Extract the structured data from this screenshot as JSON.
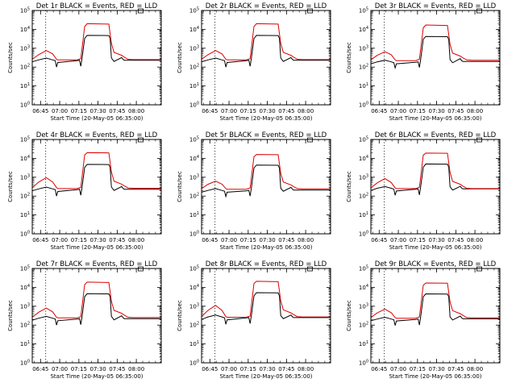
{
  "chart_data": {
    "type": "line",
    "layout": "3x3 grid of panels",
    "y_scale": "log",
    "ylim": [
      1,
      100000
    ],
    "y_ticks": [
      {
        "value": 1,
        "exp": "0"
      },
      {
        "value": 10,
        "exp": "1"
      },
      {
        "value": 100,
        "exp": "2"
      },
      {
        "value": 1000,
        "exp": "3"
      },
      {
        "value": 10000,
        "exp": "4"
      },
      {
        "value": 100000,
        "exp": "5"
      }
    ],
    "x_ticks": [
      "06:45",
      "07:00",
      "07:15",
      "07:30",
      "07:45",
      "08:00"
    ],
    "x_tick_minutes": [
      6.5,
      21.5,
      36.5,
      51.5,
      66.5,
      81.5
    ],
    "xlim_minutes": [
      0,
      101
    ],
    "vlines_minutes": [
      10.5,
      101.5
    ],
    "legend_box": "small box at top edge near 08:00",
    "colors": {
      "events": "#000000",
      "lld": "#dd0000"
    },
    "panels": [
      {
        "title": "Det 1r BLACK = Events, RED = LLD",
        "xlabel": "Start Time (20-May-05 06:35:00)",
        "ylabel": "Counts/sec",
        "series": [
          {
            "name": "Events",
            "x": [
              0,
              5,
              11,
              16,
              18,
              19,
              20,
              35,
              37,
              38,
              39,
              41,
              43,
              60,
              61,
              62,
              64,
              70,
              71,
              72,
              73,
              75,
              79,
              101
            ],
            "y": [
              190,
              240,
              300,
              240,
              220,
              100,
              175,
              220,
              230,
              110,
              300,
              3300,
              4800,
              4700,
              3300,
              300,
              200,
              320,
              260,
              230,
              230,
              230,
              230,
              230
            ]
          },
          {
            "name": "LLD",
            "x": [
              0,
              5,
              11,
              16,
              19,
              20,
              35,
              38,
              41,
              43,
              60,
              62,
              64,
              70,
              72,
              75,
              79,
              101
            ],
            "y": [
              260,
              450,
              750,
              500,
              260,
              240,
              240,
              280,
              14000,
              20000,
              19000,
              1800,
              600,
              420,
              340,
              260,
              250,
              250
            ]
          }
        ]
      },
      {
        "title": "Det 2r BLACK = Events, RED = LLD",
        "xlabel": "Start Time (20-May-05 06:35:00)",
        "ylabel": "Counts/sec",
        "series": [
          {
            "name": "Events",
            "x": [
              0,
              5,
              11,
              16,
              18,
              19,
              20,
              35,
              37,
              38,
              39,
              41,
              43,
              60,
              61,
              62,
              64,
              70,
              71,
              72,
              73,
              75,
              79,
              101
            ],
            "y": [
              190,
              240,
              300,
              240,
              220,
              100,
              175,
              220,
              230,
              110,
              300,
              3300,
              4800,
              4700,
              3300,
              300,
              200,
              320,
              260,
              230,
              230,
              230,
              230,
              230
            ]
          },
          {
            "name": "LLD",
            "x": [
              0,
              5,
              11,
              16,
              19,
              20,
              35,
              38,
              41,
              43,
              60,
              62,
              64,
              70,
              72,
              75,
              79,
              101
            ],
            "y": [
              260,
              450,
              750,
              500,
              260,
              240,
              240,
              280,
              14000,
              20000,
              19000,
              1800,
              600,
              420,
              340,
              260,
              250,
              250
            ]
          }
        ]
      },
      {
        "title": "Det 3r BLACK = Events, RED = LLD",
        "xlabel": "Start Time (20-May-05 06:35:00)",
        "ylabel": "Counts/sec",
        "series": [
          {
            "name": "Events",
            "x": [
              0,
              5,
              11,
              16,
              18,
              19,
              20,
              35,
              37,
              38,
              39,
              41,
              43,
              60,
              61,
              62,
              64,
              70,
              71,
              72,
              73,
              75,
              79,
              101
            ],
            "y": [
              150,
              190,
              230,
              190,
              170,
              90,
              150,
              180,
              190,
              95,
              260,
              3000,
              4200,
              4100,
              2900,
              250,
              170,
              280,
              220,
              200,
              200,
              200,
              200,
              200
            ]
          },
          {
            "name": "LLD",
            "x": [
              0,
              5,
              11,
              16,
              19,
              20,
              35,
              38,
              41,
              43,
              60,
              62,
              64,
              70,
              72,
              75,
              79,
              101
            ],
            "y": [
              240,
              420,
              650,
              450,
              240,
              220,
              220,
              260,
              12000,
              17000,
              16000,
              1600,
              550,
              380,
              310,
              240,
              230,
              230
            ]
          }
        ]
      },
      {
        "title": "Det 4r BLACK = Events, RED = LLD",
        "xlabel": "Start Time (20-May-05 06:35:00)",
        "ylabel": "Counts/sec",
        "series": [
          {
            "name": "Events",
            "x": [
              0,
              5,
              11,
              16,
              18,
              19,
              20,
              35,
              37,
              38,
              39,
              41,
              43,
              60,
              61,
              62,
              64,
              70,
              71,
              72,
              73,
              75,
              79,
              101
            ],
            "y": [
              190,
              240,
              300,
              240,
              220,
              100,
              175,
              220,
              230,
              110,
              300,
              3300,
              4800,
              4700,
              3300,
              300,
              200,
              320,
              260,
              230,
              230,
              230,
              230,
              230
            ]
          },
          {
            "name": "LLD",
            "x": [
              0,
              5,
              11,
              16,
              19,
              20,
              35,
              38,
              41,
              43,
              60,
              62,
              64,
              70,
              72,
              75,
              79,
              101
            ],
            "y": [
              280,
              550,
              950,
              560,
              280,
              250,
              250,
              290,
              15000,
              20000,
              19500,
              1900,
              620,
              430,
              350,
              270,
              260,
              260
            ]
          }
        ]
      },
      {
        "title": "Det 5r BLACK = Events, RED = LLD",
        "xlabel": "Start Time (20-May-05 06:35:00)",
        "ylabel": "Counts/sec",
        "series": [
          {
            "name": "Events",
            "x": [
              0,
              5,
              11,
              16,
              18,
              19,
              20,
              35,
              37,
              38,
              39,
              41,
              43,
              60,
              61,
              62,
              64,
              70,
              71,
              72,
              73,
              75,
              79,
              101
            ],
            "y": [
              160,
              200,
              250,
              200,
              180,
              95,
              160,
              190,
              200,
              100,
              270,
              3100,
              4400,
              4300,
              3000,
              260,
              180,
              290,
              240,
              210,
              210,
              210,
              210,
              210
            ]
          },
          {
            "name": "LLD",
            "x": [
              0,
              5,
              11,
              16,
              19,
              20,
              35,
              38,
              41,
              43,
              60,
              62,
              64,
              70,
              72,
              75,
              79,
              101
            ],
            "y": [
              250,
              420,
              620,
              430,
              250,
              230,
              230,
              270,
              12000,
              16000,
              15500,
              1600,
              560,
              390,
              320,
              250,
              240,
              240
            ]
          }
        ]
      },
      {
        "title": "Det 6r BLACK = Events, RED = LLD",
        "xlabel": "Start Time (20-May-05 06:35:00)",
        "ylabel": "Counts/sec",
        "series": [
          {
            "name": "Events",
            "x": [
              0,
              5,
              11,
              16,
              18,
              19,
              20,
              35,
              37,
              38,
              39,
              41,
              43,
              60,
              61,
              62,
              64,
              70,
              71,
              72,
              73,
              75,
              79,
              101
            ],
            "y": [
              200,
              260,
              320,
              260,
              230,
              110,
              185,
              230,
              240,
              115,
              320,
              3400,
              5000,
              4900,
              3400,
              310,
              210,
              330,
              270,
              240,
              240,
              240,
              240,
              240
            ]
          },
          {
            "name": "LLD",
            "x": [
              0,
              5,
              11,
              16,
              19,
              20,
              35,
              38,
              41,
              43,
              60,
              62,
              64,
              70,
              72,
              75,
              79,
              101
            ],
            "y": [
              270,
              500,
              850,
              520,
              270,
              250,
              250,
              290,
              15000,
              19000,
              18500,
              1800,
              600,
              420,
              340,
              260,
              250,
              250
            ]
          }
        ]
      },
      {
        "title": "Det 7r BLACK = Events, RED = LLD",
        "xlabel": "Start Time (20-May-05 06:35:00)",
        "ylabel": "Counts/sec",
        "series": [
          {
            "name": "Events",
            "x": [
              0,
              5,
              11,
              16,
              18,
              19,
              20,
              35,
              37,
              38,
              39,
              41,
              43,
              60,
              61,
              62,
              64,
              70,
              71,
              72,
              73,
              75,
              79,
              101
            ],
            "y": [
              180,
              230,
              290,
              230,
              210,
              100,
              170,
              210,
              220,
              105,
              290,
              3200,
              4600,
              4500,
              3200,
              290,
              190,
              310,
              250,
              220,
              220,
              220,
              220,
              220
            ]
          },
          {
            "name": "LLD",
            "x": [
              0,
              5,
              11,
              16,
              19,
              20,
              35,
              38,
              41,
              43,
              60,
              62,
              64,
              70,
              72,
              75,
              79,
              101
            ],
            "y": [
              260,
              480,
              800,
              500,
              260,
              240,
              240,
              280,
              14000,
              19000,
              18000,
              1800,
              600,
              420,
              340,
              260,
              250,
              250
            ]
          }
        ]
      },
      {
        "title": "Det 8r BLACK = Events, RED = LLD",
        "xlabel": "Start Time (20-May-05 06:35:00)",
        "ylabel": "Counts/sec",
        "series": [
          {
            "name": "Events",
            "x": [
              0,
              5,
              11,
              16,
              18,
              19,
              20,
              35,
              37,
              38,
              39,
              41,
              43,
              60,
              61,
              62,
              64,
              70,
              71,
              72,
              73,
              75,
              79,
              101
            ],
            "y": [
              200,
              270,
              340,
              270,
              240,
              110,
              190,
              240,
              250,
              120,
              330,
              3500,
              5200,
              5100,
              3500,
              320,
              220,
              340,
              280,
              250,
              250,
              250,
              250,
              250
            ]
          },
          {
            "name": "LLD",
            "x": [
              0,
              5,
              11,
              16,
              19,
              20,
              35,
              38,
              41,
              43,
              60,
              62,
              64,
              70,
              72,
              75,
              79,
              101
            ],
            "y": [
              280,
              600,
              1100,
              600,
              280,
              260,
              260,
              300,
              16000,
              21000,
              20000,
              1900,
              640,
              440,
              360,
              280,
              270,
              270
            ]
          }
        ]
      },
      {
        "title": "Det 9r BLACK = Events, RED = LLD",
        "xlabel": "Start Time (20-May-05 06:35:00)",
        "ylabel": "Counts/sec",
        "series": [
          {
            "name": "Events",
            "x": [
              0,
              5,
              11,
              16,
              18,
              19,
              20,
              35,
              37,
              38,
              39,
              41,
              43,
              60,
              61,
              62,
              64,
              70,
              71,
              72,
              73,
              75,
              79,
              101
            ],
            "y": [
              170,
              210,
              260,
              210,
              190,
              95,
              165,
              200,
              210,
              100,
              280,
              3200,
              4500,
              4400,
              3100,
              270,
              185,
              300,
              245,
              215,
              215,
              215,
              215,
              215
            ]
          },
          {
            "name": "LLD",
            "x": [
              0,
              5,
              11,
              16,
              19,
              20,
              35,
              38,
              41,
              43,
              60,
              62,
              64,
              70,
              72,
              75,
              79,
              101
            ],
            "y": [
              250,
              440,
              700,
              450,
              250,
              230,
              230,
              270,
              13000,
              17000,
              16500,
              1700,
              580,
              400,
              330,
              250,
              240,
              240
            ]
          }
        ]
      }
    ]
  }
}
